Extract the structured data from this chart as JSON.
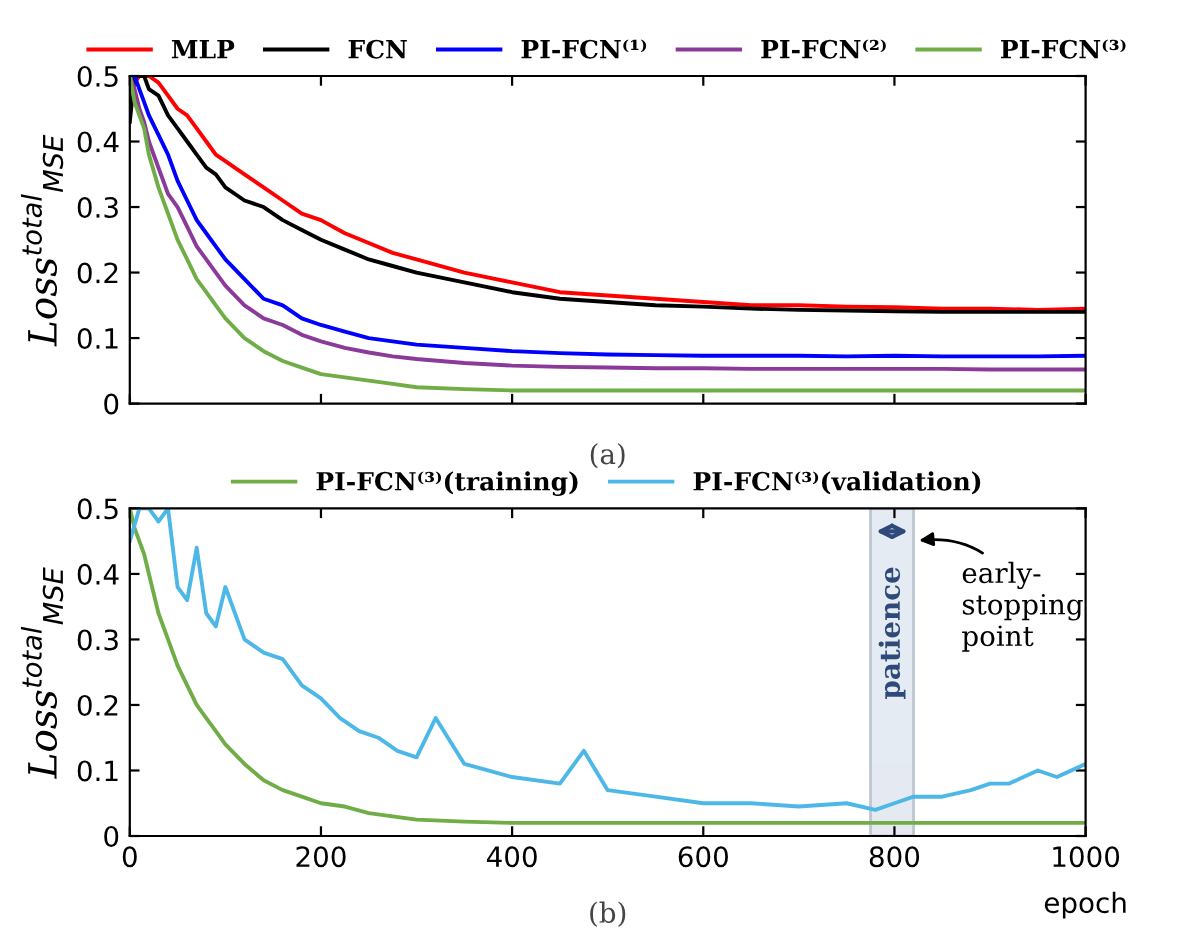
{
  "chart_data": [
    {
      "type": "line",
      "ylabel": "Loss$^{total}$$_{MSE}$",
      "annotations": [
        "(a)"
      ],
      "xlim": [
        0,
        1000
      ],
      "xticks": [
        {
          "value": 0,
          "label": null
        },
        {
          "value": 200,
          "label": null
        },
        {
          "value": 400,
          "label": null
        },
        {
          "value": 600,
          "label": null
        },
        {
          "value": 800,
          "label": null
        },
        {
          "value": 1000,
          "label": null
        }
      ],
      "ylim": [
        0,
        0.5
      ],
      "yticks": [
        0,
        0.1,
        0.2,
        0.3,
        0.4,
        0.5
      ],
      "tick_labels": "y",
      "legend": "top",
      "grid": false,
      "marker": "none",
      "line_style": "solid",
      "x": [
        0,
        5,
        10,
        15,
        20,
        30,
        40,
        50,
        60,
        70,
        80,
        90,
        100,
        120,
        140,
        160,
        180,
        200,
        225,
        250,
        275,
        300,
        350,
        400,
        450,
        500,
        550,
        600,
        650,
        700,
        750,
        800,
        850,
        900,
        950,
        1000
      ],
      "series": [
        {
          "name": "MLP",
          "color": "#ff0000",
          "values": [
            0.47,
            0.49,
            0.5,
            0.5,
            0.5,
            0.49,
            0.47,
            0.45,
            0.44,
            0.42,
            0.4,
            0.38,
            0.37,
            0.35,
            0.33,
            0.31,
            0.29,
            0.28,
            0.26,
            0.245,
            0.23,
            0.22,
            0.2,
            0.185,
            0.17,
            0.165,
            0.16,
            0.155,
            0.15,
            0.15,
            0.148,
            0.147,
            0.145,
            0.145,
            0.143,
            0.145
          ]
        },
        {
          "name": "FCN",
          "color": "#000000",
          "values": [
            0.43,
            0.5,
            0.5,
            0.5,
            0.48,
            0.47,
            0.44,
            0.42,
            0.4,
            0.38,
            0.36,
            0.35,
            0.33,
            0.31,
            0.3,
            0.28,
            0.265,
            0.25,
            0.235,
            0.22,
            0.21,
            0.2,
            0.185,
            0.17,
            0.16,
            0.155,
            0.15,
            0.148,
            0.145,
            0.143,
            0.142,
            0.141,
            0.14,
            0.14,
            0.14,
            0.14
          ]
        },
        {
          "name": "PI-FCN⁽¹⁾",
          "color": "#0000ff",
          "values": [
            0.5,
            0.5,
            0.48,
            0.46,
            0.44,
            0.41,
            0.38,
            0.34,
            0.31,
            0.28,
            0.26,
            0.24,
            0.22,
            0.19,
            0.16,
            0.15,
            0.13,
            0.12,
            0.11,
            0.1,
            0.095,
            0.09,
            0.085,
            0.08,
            0.077,
            0.075,
            0.074,
            0.073,
            0.073,
            0.073,
            0.072,
            0.073,
            0.072,
            0.072,
            0.072,
            0.073
          ]
        },
        {
          "name": "PI-FCN⁽²⁾",
          "color": "#8b3a9a",
          "values": [
            0.5,
            0.48,
            0.45,
            0.43,
            0.4,
            0.36,
            0.32,
            0.3,
            0.27,
            0.24,
            0.22,
            0.2,
            0.18,
            0.15,
            0.13,
            0.12,
            0.105,
            0.095,
            0.085,
            0.078,
            0.072,
            0.068,
            0.062,
            0.058,
            0.056,
            0.055,
            0.054,
            0.054,
            0.053,
            0.053,
            0.053,
            0.053,
            0.053,
            0.052,
            0.052,
            0.052
          ]
        },
        {
          "name": "PI-FCN⁽³⁾",
          "color": "#70ad47",
          "values": [
            0.5,
            0.46,
            0.44,
            0.42,
            0.38,
            0.33,
            0.29,
            0.25,
            0.22,
            0.19,
            0.17,
            0.15,
            0.13,
            0.1,
            0.08,
            0.065,
            0.055,
            0.045,
            0.04,
            0.035,
            0.03,
            0.025,
            0.022,
            0.02,
            0.02,
            0.02,
            0.02,
            0.02,
            0.02,
            0.02,
            0.02,
            0.02,
            0.02,
            0.02,
            0.02,
            0.02
          ]
        }
      ]
    },
    {
      "type": "line",
      "ylabel": "Loss$^{total}$$_{MSE}$",
      "xlabel": "epoch",
      "annotations": [
        "(b)",
        {
          "text": "early-\nstopping\npoint",
          "x": 820,
          "y": 0.45
        }
      ],
      "xlim": [
        0,
        1000
      ],
      "xticks": [
        0,
        200,
        400,
        600,
        800,
        1000
      ],
      "ylim": [
        0,
        0.5
      ],
      "yticks": [
        0,
        0.1,
        0.2,
        0.3,
        0.4,
        0.5
      ],
      "legend": "top",
      "grid": false,
      "marker": "none",
      "line_style": "solid",
      "bands": [
        {
          "axis": "x",
          "from": 775,
          "to": 820,
          "label": "patience",
          "color": "#dfe6f0"
        }
      ],
      "series": [
        {
          "name": "PI-FCN⁽³⁾(training)",
          "color": "#70ad47",
          "x": [
            0,
            5,
            10,
            15,
            20,
            30,
            40,
            50,
            60,
            70,
            80,
            90,
            100,
            120,
            140,
            160,
            180,
            200,
            225,
            250,
            275,
            300,
            350,
            400,
            450,
            500,
            550,
            600,
            650,
            700,
            750,
            800,
            850,
            900,
            950,
            1000
          ],
          "values": [
            0.5,
            0.47,
            0.45,
            0.43,
            0.4,
            0.34,
            0.3,
            0.26,
            0.23,
            0.2,
            0.18,
            0.16,
            0.14,
            0.11,
            0.085,
            0.07,
            0.06,
            0.05,
            0.045,
            0.035,
            0.03,
            0.025,
            0.022,
            0.02,
            0.02,
            0.02,
            0.02,
            0.02,
            0.02,
            0.02,
            0.02,
            0.02,
            0.02,
            0.02,
            0.02,
            0.02
          ]
        },
        {
          "name": "PI-FCN⁽³⁾(validation)",
          "color": "#4db8e8",
          "x": [
            0,
            10,
            20,
            30,
            40,
            50,
            60,
            70,
            80,
            90,
            100,
            120,
            140,
            160,
            180,
            200,
            220,
            240,
            260,
            280,
            300,
            320,
            350,
            400,
            450,
            475,
            500,
            550,
            600,
            650,
            700,
            750,
            780,
            800,
            820,
            850,
            880,
            900,
            920,
            950,
            970,
            1000
          ],
          "values": [
            0.45,
            0.5,
            0.5,
            0.48,
            0.5,
            0.38,
            0.36,
            0.44,
            0.34,
            0.32,
            0.38,
            0.3,
            0.28,
            0.27,
            0.23,
            0.21,
            0.18,
            0.16,
            0.15,
            0.13,
            0.12,
            0.18,
            0.11,
            0.09,
            0.08,
            0.13,
            0.07,
            0.06,
            0.05,
            0.05,
            0.045,
            0.05,
            0.04,
            0.05,
            0.06,
            0.06,
            0.07,
            0.08,
            0.08,
            0.1,
            0.09,
            0.11
          ]
        }
      ]
    }
  ]
}
